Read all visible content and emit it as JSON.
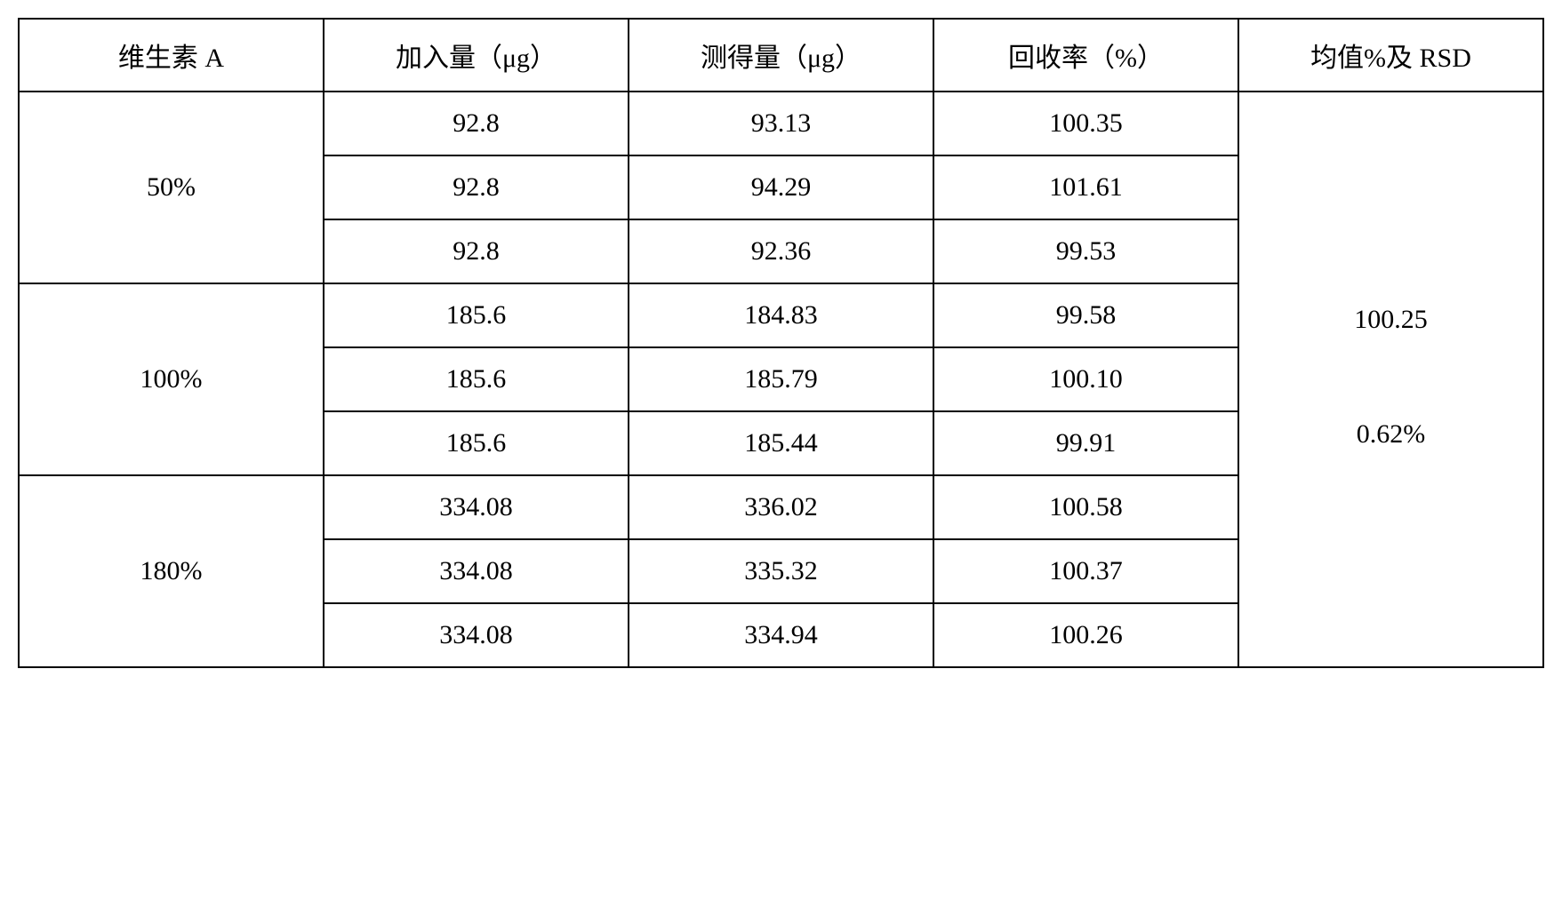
{
  "table": {
    "type": "table",
    "columns": [
      "维生素 A",
      "加入量（μg）",
      "测得量（μg）",
      "回收率（%）",
      "均值%及 RSD"
    ],
    "column_widths": [
      "20%",
      "20%",
      "20%",
      "20%",
      "20%"
    ],
    "groups": [
      {
        "level": "50%",
        "rows": [
          {
            "added": "92.8",
            "measured": "93.13",
            "recovery": "100.35"
          },
          {
            "added": "92.8",
            "measured": "94.29",
            "recovery": "101.61"
          },
          {
            "added": "92.8",
            "measured": "92.36",
            "recovery": "99.53"
          }
        ]
      },
      {
        "level": "100%",
        "rows": [
          {
            "added": "185.6",
            "measured": "184.83",
            "recovery": "99.58"
          },
          {
            "added": "185.6",
            "measured": "185.79",
            "recovery": "100.10"
          },
          {
            "added": "185.6",
            "measured": "185.44",
            "recovery": "99.91"
          }
        ]
      },
      {
        "level": "180%",
        "rows": [
          {
            "added": "334.08",
            "measured": "336.02",
            "recovery": "100.58"
          },
          {
            "added": "334.08",
            "measured": "335.32",
            "recovery": "100.37"
          },
          {
            "added": "334.08",
            "measured": "334.94",
            "recovery": "100.26"
          }
        ]
      }
    ],
    "mean_value": "100.25",
    "rsd_value": "0.62%",
    "border_color": "#000000",
    "background_color": "#ffffff",
    "text_color": "#000000",
    "font_size": 30
  }
}
